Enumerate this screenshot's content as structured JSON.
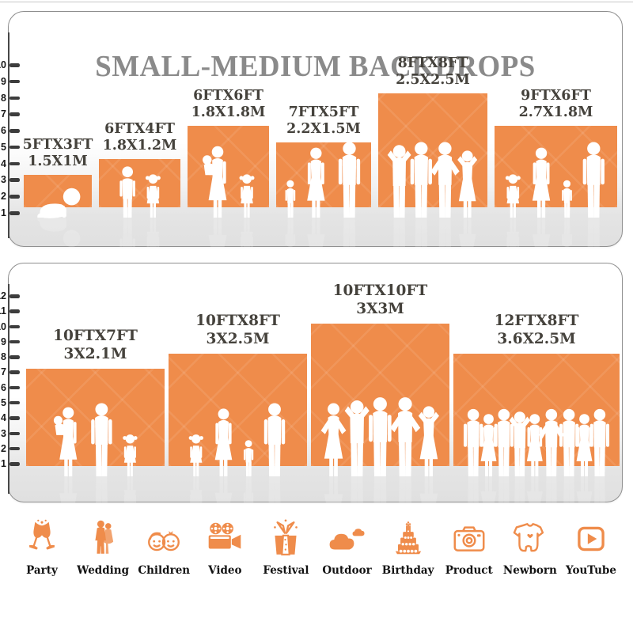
{
  "title": "SMALL-MEDIUM BACKDROPS",
  "colors": {
    "accent_orange": "#EF8C4B",
    "title_gray": "#8A8A8A",
    "label_gray": "#45423C",
    "floor_gray": "#E3E3E3",
    "tick_dark": "#3D3D3D",
    "figure_white": "#FFFFFF"
  },
  "chart_data": [
    {
      "type": "bar",
      "title": "SMALL-MEDIUM BACKDROPS",
      "panel": "small backdrops",
      "ylim": [
        0,
        10
      ],
      "yticks": [
        1,
        2,
        3,
        4,
        5,
        6,
        7,
        8,
        9,
        10
      ],
      "grid": false,
      "bars": [
        {
          "size_ft": "5FTX3FT",
          "size_m": "1.5X1M",
          "width_ft": 5,
          "height_ft": 3,
          "figures": [
            "crawling-baby"
          ]
        },
        {
          "size_ft": "6FTX4FT",
          "size_m": "1.8X1.2M",
          "width_ft": 6,
          "height_ft": 4,
          "figures": [
            "boy",
            "girl"
          ]
        },
        {
          "size_ft": "6FTX6FT",
          "size_m": "1.8X1.8M",
          "width_ft": 6,
          "height_ft": 6,
          "figures": [
            "woman-holding-baby",
            "girl"
          ]
        },
        {
          "size_ft": "7FTX5FT",
          "size_m": "2.2X1.5M",
          "width_ft": 7,
          "height_ft": 5,
          "figures": [
            "child",
            "woman",
            "man"
          ]
        },
        {
          "size_ft": "8FTX8FT",
          "size_m": "2.5X2.5M",
          "width_ft": 8,
          "height_ft": 8,
          "figures": [
            "man-arms-up",
            "man",
            "man-hands-on-hips",
            "woman-arms-up"
          ]
        },
        {
          "size_ft": "9FTX6FT",
          "size_m": "2.7X1.8M",
          "width_ft": 9,
          "height_ft": 6,
          "figures": [
            "girl",
            "woman",
            "child",
            "man"
          ]
        }
      ]
    },
    {
      "type": "bar",
      "title": "",
      "panel": "medium backdrops",
      "ylim": [
        0,
        12
      ],
      "yticks": [
        1,
        2,
        3,
        4,
        5,
        6,
        7,
        8,
        9,
        10,
        11,
        12
      ],
      "grid": false,
      "bars": [
        {
          "size_ft": "10FTX7FT",
          "size_m": "3X2.1M",
          "width_ft": 10,
          "height_ft": 7,
          "figures": [
            "woman-holding-baby",
            "man",
            "girl"
          ]
        },
        {
          "size_ft": "10FTX8FT",
          "size_m": "3X2.5M",
          "width_ft": 10,
          "height_ft": 8,
          "figures": [
            "girl",
            "woman",
            "child",
            "man"
          ]
        },
        {
          "size_ft": "10FTX10FT",
          "size_m": "3X3M",
          "width_ft": 10,
          "height_ft": 10,
          "figures": [
            "woman-hands-on-hips",
            "man-arms-up",
            "man",
            "man-hands-on-hips",
            "woman-arms-up"
          ]
        },
        {
          "size_ft": "12FTX8FT",
          "size_m": "3.6X2.5M",
          "width_ft": 12,
          "height_ft": 8,
          "figures": [
            "man",
            "woman",
            "man",
            "man-arms-up",
            "woman",
            "man-hands-on-hips",
            "man",
            "woman",
            "man"
          ]
        }
      ]
    }
  ],
  "categories": [
    {
      "label": "Party",
      "icon": "party-toast-icon"
    },
    {
      "label": "Wedding",
      "icon": "wedding-couple-icon"
    },
    {
      "label": "Children",
      "icon": "children-faces-icon"
    },
    {
      "label": "Video",
      "icon": "video-camera-icon"
    },
    {
      "label": "Festival",
      "icon": "festival-gift-icon"
    },
    {
      "label": "Outdoor",
      "icon": "outdoor-clouds-icon"
    },
    {
      "label": "Birthday",
      "icon": "birthday-cake-icon"
    },
    {
      "label": "Product",
      "icon": "product-camera-icon"
    },
    {
      "label": "Newborn",
      "icon": "newborn-onesie-icon"
    },
    {
      "label": "YouTube",
      "icon": "youtube-play-icon"
    }
  ]
}
